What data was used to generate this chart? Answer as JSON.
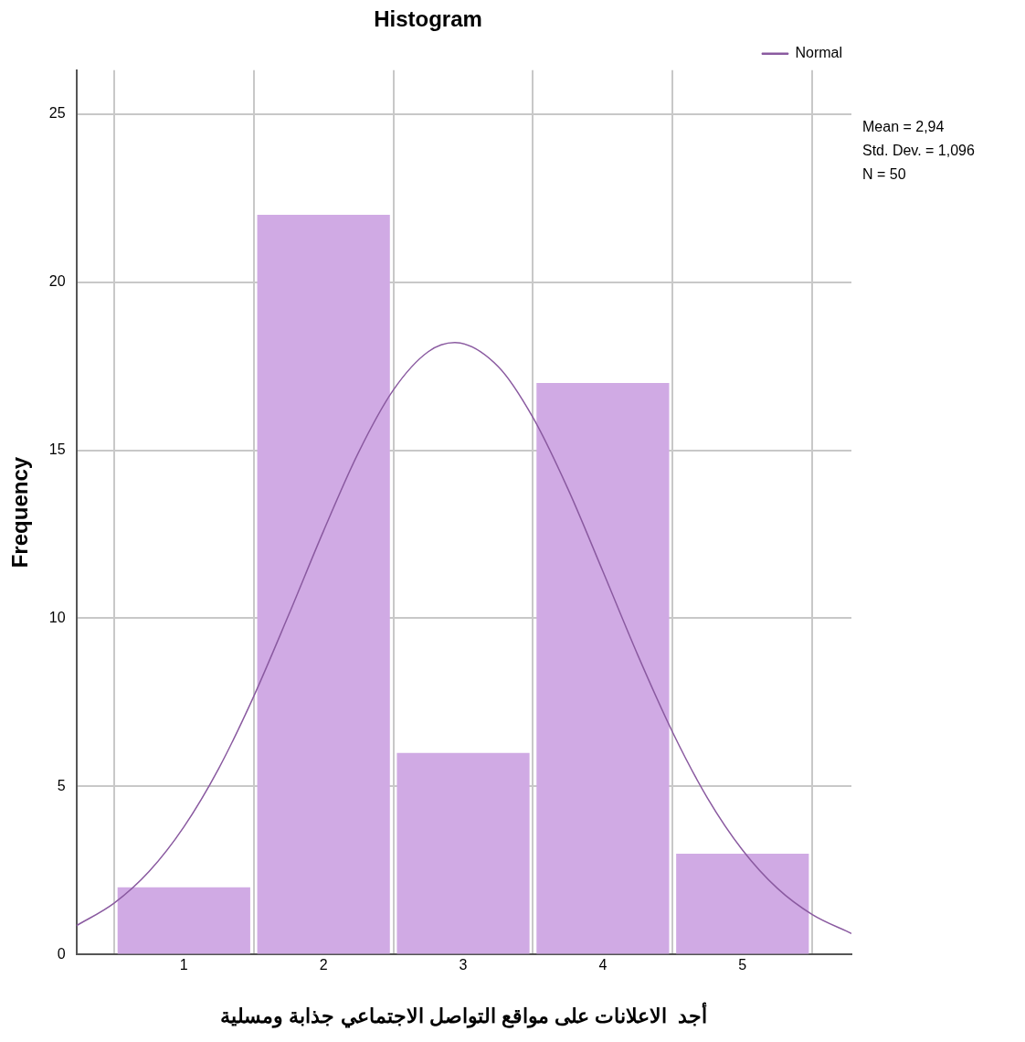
{
  "chart_data": {
    "type": "histogram",
    "title": "Histogram",
    "xlabel": "أجد  الاعلانات على مواقع التواصل الاجتماعي جذابة ومسلية",
    "ylabel": "Frequency",
    "bins": [
      0.5,
      1.5,
      2.5,
      3.5,
      4.5,
      5.5
    ],
    "series": [
      {
        "color": "#d0aae4",
        "values": [
          2,
          22,
          6,
          17,
          3
        ]
      },
      {
        "type": "line",
        "name": "Normal",
        "color": "#8a5aa0",
        "x": [
          0.23,
          0.5,
          0.75,
          1,
          1.25,
          1.5,
          1.75,
          2,
          2.25,
          2.5,
          2.75,
          2.94,
          3.25,
          3.5,
          3.75,
          4,
          4.25,
          4.5,
          4.75,
          5,
          5.25,
          5.5,
          5.78
        ],
        "values": [
          0.86,
          1.53,
          2.47,
          3.8,
          5.54,
          7.68,
          10.1,
          12.6,
          14.93,
          16.79,
          17.93,
          18.2,
          17.49,
          15.97,
          13.85,
          11.4,
          8.91,
          6.61,
          4.65,
          3.11,
          1.97,
          1.19,
          0.63
        ]
      }
    ],
    "xlim": [
      0.23,
      5.78
    ],
    "xticks": [
      1,
      2,
      3,
      4,
      5
    ],
    "ylim": [
      0,
      26.3
    ],
    "yticks": [
      0,
      5,
      10,
      15,
      20,
      25
    ],
    "grid": true,
    "legend": "top right",
    "marker": "none",
    "line_style": "solid",
    "annotations": [
      "Mean = 2,94",
      "Std. Dev. = 1,096",
      "N = 50"
    ]
  }
}
